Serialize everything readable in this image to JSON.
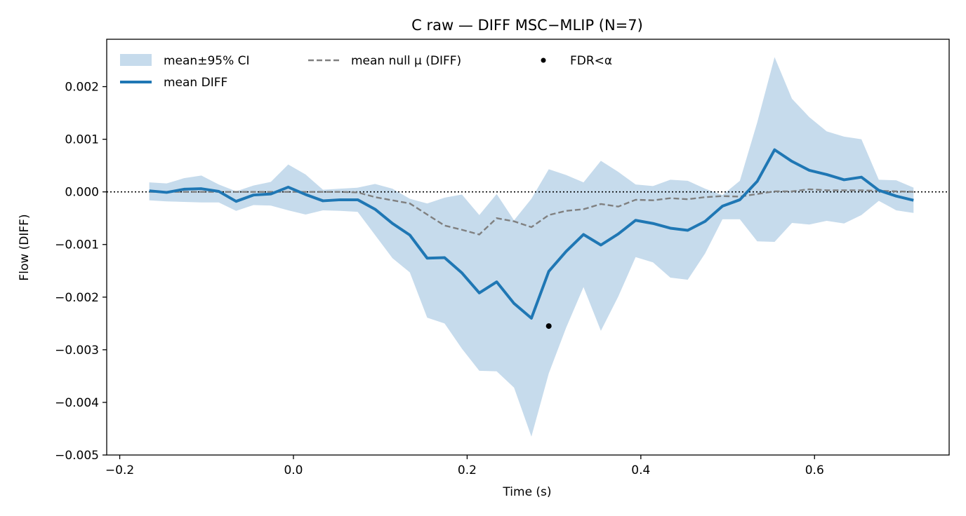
{
  "chart_data": {
    "type": "line",
    "title": "C raw — DIFF MSC−MLIP (N=7)",
    "xlabel": "Time (s)",
    "ylabel": "Flow (DIFF)",
    "xlim": [
      -0.215,
      0.755
    ],
    "ylim": [
      -0.005,
      0.0029
    ],
    "xticks": [
      -0.2,
      0.0,
      0.2,
      0.4,
      0.6
    ],
    "xtick_labels": [
      "−0.2",
      "0.0",
      "0.2",
      "0.4",
      "0.6"
    ],
    "yticks": [
      -0.005,
      -0.004,
      -0.003,
      -0.002,
      -0.001,
      0.0,
      0.001,
      0.002
    ],
    "ytick_labels": [
      "−0.005",
      "−0.004",
      "−0.003",
      "−0.002",
      "−0.001",
      "0.000",
      "0.001",
      "0.002"
    ],
    "grid": false,
    "legend_position": "top-left",
    "zero_line": true,
    "x": [
      -0.166,
      -0.146,
      -0.126,
      -0.106,
      -0.086,
      -0.066,
      -0.046,
      -0.026,
      -0.006,
      0.014,
      0.034,
      0.054,
      0.074,
      0.094,
      0.114,
      0.134,
      0.154,
      0.174,
      0.194,
      0.214,
      0.234,
      0.254,
      0.274,
      0.294,
      0.314,
      0.334,
      0.354,
      0.374,
      0.394,
      0.414,
      0.434,
      0.454,
      0.474,
      0.494,
      0.514,
      0.534,
      0.554,
      0.574,
      0.594,
      0.614,
      0.634,
      0.654,
      0.674,
      0.694,
      0.714
    ],
    "series": [
      {
        "name": "mean±95% CI",
        "kind": "band",
        "color": "#c6dbec",
        "upper": [
          0.00018,
          0.00016,
          0.00026,
          0.00031,
          0.00014,
          1e-05,
          0.00012,
          0.00019,
          0.00052,
          0.00033,
          4e-05,
          6e-05,
          8e-05,
          0.00015,
          6e-05,
          -0.00013,
          -0.00022,
          -0.00011,
          -5e-05,
          -0.00044,
          -4e-05,
          -0.00054,
          -0.00013,
          0.00043,
          0.00032,
          0.00018,
          0.00059,
          0.00038,
          0.00014,
          0.00011,
          0.00023,
          0.00021,
          6e-05,
          -6e-05,
          0.00021,
          0.00132,
          0.00256,
          0.00177,
          0.00142,
          0.00115,
          0.00105,
          0.001,
          0.00023,
          0.00022,
          8e-05
        ],
        "lower": [
          -0.00016,
          -0.00018,
          -0.00019,
          -0.0002,
          -0.0002,
          -0.00036,
          -0.00025,
          -0.00026,
          -0.00035,
          -0.00043,
          -0.00035,
          -0.00036,
          -0.00038,
          -0.00082,
          -0.00126,
          -0.00153,
          -0.00239,
          -0.0025,
          -0.00298,
          -0.0034,
          -0.00341,
          -0.00372,
          -0.00465,
          -0.00345,
          -0.00258,
          -0.00181,
          -0.00264,
          -0.00199,
          -0.00124,
          -0.00134,
          -0.00163,
          -0.00167,
          -0.00117,
          -0.00052,
          -0.00052,
          -0.00094,
          -0.00095,
          -0.00059,
          -0.00062,
          -0.00055,
          -0.0006,
          -0.00044,
          -0.00017,
          -0.00035,
          -0.0004
        ]
      },
      {
        "name": "mean DIFF",
        "kind": "line",
        "color": "#1f77b4",
        "values": [
          2e-05,
          -1e-05,
          5e-05,
          6e-05,
          1e-05,
          -0.00018,
          -6e-05,
          -4e-05,
          9e-05,
          -5e-05,
          -0.00017,
          -0.00015,
          -0.00015,
          -0.00033,
          -0.0006,
          -0.00082,
          -0.00126,
          -0.00125,
          -0.00154,
          -0.00192,
          -0.00171,
          -0.00212,
          -0.0024,
          -0.00151,
          -0.00113,
          -0.00081,
          -0.00101,
          -0.0008,
          -0.00054,
          -0.0006,
          -0.00069,
          -0.00073,
          -0.00056,
          -0.00027,
          -0.00015,
          0.0002,
          0.0008,
          0.00058,
          0.00041,
          0.00033,
          0.00023,
          0.00028,
          3e-05,
          -8e-05,
          -0.00016
        ]
      },
      {
        "name": "mean null μ (DIFF)",
        "kind": "dashed-line",
        "color": "#808080",
        "values": [
          0.0,
          0.0,
          0.0,
          0.0,
          0.0,
          0.0,
          0.0,
          0.0,
          0.0,
          0.0,
          0.0,
          0.0,
          -1e-05,
          -0.0001,
          -0.00016,
          -0.00022,
          -0.00043,
          -0.00064,
          -0.00072,
          -0.00081,
          -0.0005,
          -0.00056,
          -0.00067,
          -0.00044,
          -0.00036,
          -0.00033,
          -0.00023,
          -0.00028,
          -0.00015,
          -0.00016,
          -0.00012,
          -0.00014,
          -0.0001,
          -8e-05,
          -9e-05,
          -4e-05,
          1e-05,
          1e-05,
          5e-05,
          3e-05,
          3e-05,
          3e-05,
          2e-05,
          1e-05,
          0.0
        ]
      },
      {
        "name": "FDR<α",
        "kind": "markers",
        "color": "#000000",
        "points": [
          {
            "x": 0.294,
            "y": -0.00255
          }
        ]
      }
    ]
  }
}
